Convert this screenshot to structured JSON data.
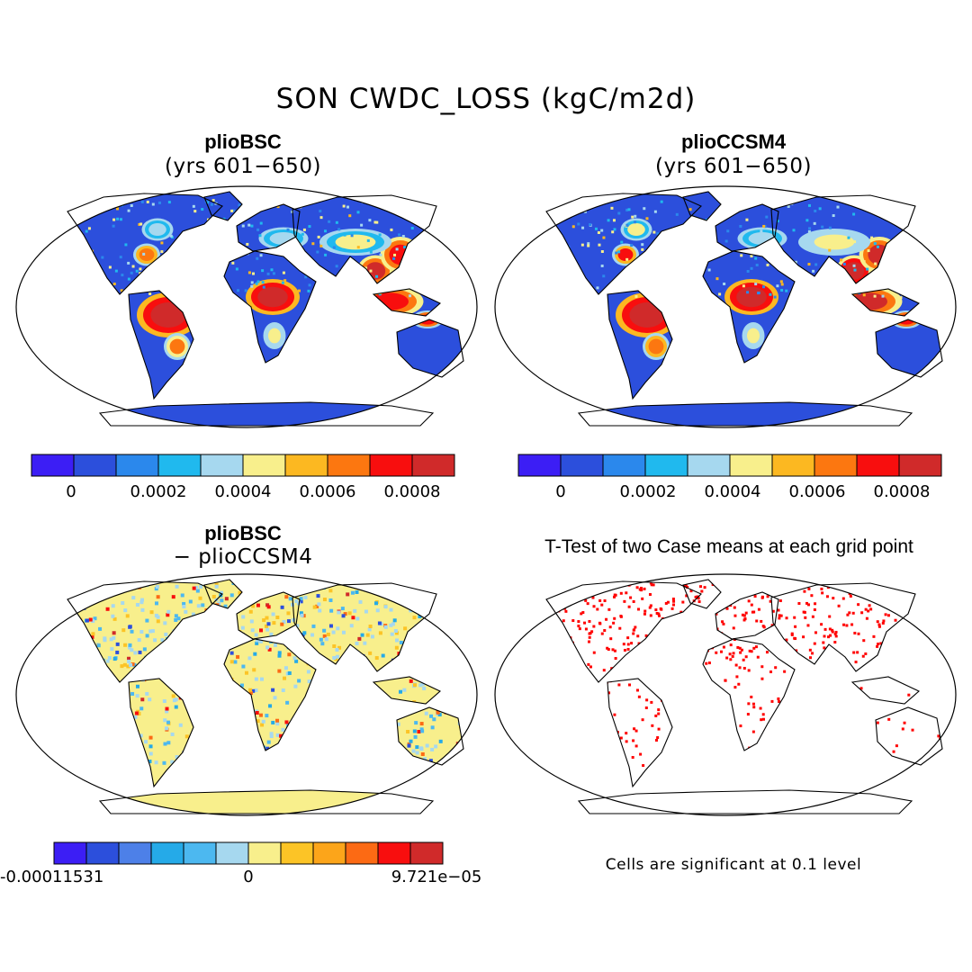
{
  "figure": {
    "title": "SON CWDC_LOSS (kgC/m2d)",
    "note": "Cells are significant at 0.1 level"
  },
  "chart_data": [
    {
      "type": "heatmap",
      "projection": "Robinson (global)",
      "title": "plioBSC",
      "subtitle": "(yrs 601−650)",
      "colorbar": {
        "ticks": [
          "0",
          "0.0002",
          "0.0004",
          "0.0006",
          "0.0008"
        ],
        "tick_values": [
          0,
          0.0002,
          0.0004,
          0.0006,
          0.0008
        ],
        "levels": [
          -0.0001,
          0,
          0.0001,
          0.0002,
          0.0003,
          0.0004,
          0.0005,
          0.0006,
          0.0007,
          0.0008,
          0.0009
        ],
        "colors": [
          "#3c1ef5",
          "#2c4fdc",
          "#2b88ec",
          "#20b9ee",
          "#a6d8ef",
          "#f8ef8c",
          "#fcb821",
          "#fc7710",
          "#f80e0e",
          "#d02a2a"
        ]
      }
    },
    {
      "type": "heatmap",
      "projection": "Robinson (global)",
      "title": "plioCCSM4",
      "subtitle": "(yrs 601−650)",
      "colorbar": {
        "ticks": [
          "0",
          "0.0002",
          "0.0004",
          "0.0006",
          "0.0008"
        ],
        "tick_values": [
          0,
          0.0002,
          0.0004,
          0.0006,
          0.0008
        ],
        "levels": [
          -0.0001,
          0,
          0.0001,
          0.0002,
          0.0003,
          0.0004,
          0.0005,
          0.0006,
          0.0007,
          0.0008,
          0.0009
        ],
        "colors": [
          "#3c1ef5",
          "#2c4fdc",
          "#2b88ec",
          "#20b9ee",
          "#a6d8ef",
          "#f8ef8c",
          "#fcb821",
          "#fc7710",
          "#f80e0e",
          "#d02a2a"
        ]
      }
    },
    {
      "type": "heatmap",
      "projection": "Robinson (global)",
      "title": "plioBSC",
      "subtitle": "− plioCCSM4",
      "colorbar": {
        "ticks": [
          "-0.00011531",
          "0",
          "9.721e−05"
        ],
        "tick_values": [
          -0.00011531,
          0,
          9.721e-05
        ],
        "range": [
          -0.00011531,
          9.721e-05
        ],
        "colors": [
          "#3c1ef5",
          "#2c4fdc",
          "#4d80e8",
          "#25aae8",
          "#4cb8f0",
          "#a6d8ef",
          "#f8ef8c",
          "#fcc426",
          "#fca51a",
          "#fc6a14",
          "#f80e0e",
          "#d02a2a"
        ]
      }
    },
    {
      "type": "heatmap",
      "projection": "Robinson (global)",
      "title": "T-Test of two Case means at each grid point",
      "significance_level": 0.1,
      "marker_color": "#ff0000"
    }
  ]
}
